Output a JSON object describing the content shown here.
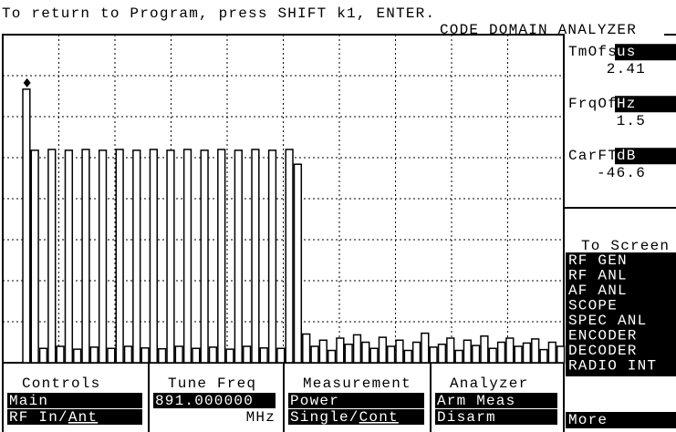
{
  "header": {
    "instruction": "To return to Program, press SHIFT k1, ENTER.",
    "title": "CODE DOMAIN ANALYZER"
  },
  "graph": {
    "type": "bar",
    "ylim": [
      0,
      8
    ],
    "yticks": [
      0,
      1,
      2,
      3,
      4,
      5,
      6,
      7,
      8
    ],
    "grid": true,
    "marker_channel": 0,
    "values": [
      6.67,
      5.18,
      0.35,
      5.2,
      0.4,
      5.18,
      0.33,
      5.2,
      0.38,
      5.18,
      0.35,
      5.2,
      0.4,
      5.18,
      0.36,
      5.2,
      0.34,
      5.18,
      0.4,
      5.2,
      0.35,
      5.18,
      0.38,
      5.2,
      0.33,
      5.18,
      0.4,
      5.2,
      0.36,
      5.18,
      0.35,
      5.2,
      4.84,
      0.7,
      0.4,
      0.55,
      0.3,
      0.6,
      0.45,
      0.68,
      0.5,
      0.35,
      0.62,
      0.4,
      0.55,
      0.3,
      0.5,
      0.72,
      0.38,
      0.45,
      0.6,
      0.3,
      0.55,
      0.42,
      0.65,
      0.35,
      0.5,
      0.6,
      0.4,
      0.48,
      0.58,
      0.32,
      0.5,
      0.4
    ]
  },
  "readouts": [
    {
      "label": "TmOfs",
      "unit": "us",
      "value": "2.41"
    },
    {
      "label": "FrqOf",
      "unit": "Hz",
      "value": "1.5"
    },
    {
      "label": "CarFT",
      "unit": "dB",
      "value": "-46.6"
    }
  ],
  "screens": {
    "title": "To Screen",
    "items": [
      "RF GEN",
      "RF ANL",
      "AF ANL",
      "SCOPE",
      "SPEC ANL",
      "ENCODER",
      "DECODER",
      "RADIO INT"
    ],
    "more": "More"
  },
  "softkeys": [
    {
      "title": "Controls",
      "lines": [
        {
          "text": "Main",
          "highlight": true
        },
        {
          "text": "RF In/",
          "underline": "Ant",
          "highlight": true
        }
      ]
    },
    {
      "title": "Tune Freq",
      "lines": [
        {
          "text": "891.000000",
          "highlight": true
        },
        {
          "text": "MHz",
          "highlight": false
        }
      ]
    },
    {
      "title": "Measurement",
      "lines": [
        {
          "text": "Power",
          "highlight": true
        },
        {
          "text": "Single/",
          "underline": "Cont",
          "highlight": true
        }
      ]
    },
    {
      "title": "Analyzer",
      "lines": [
        {
          "text": "Arm Meas",
          "highlight": true
        },
        {
          "text": "Disarm",
          "highlight": true
        }
      ]
    }
  ]
}
